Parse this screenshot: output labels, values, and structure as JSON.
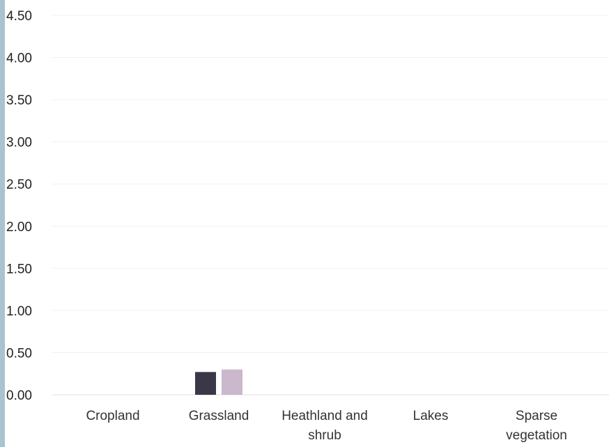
{
  "chart_data": {
    "type": "bar",
    "categories": [
      "Cropland",
      "Grassland",
      "Heathland and shrub",
      "Lakes",
      "Sparse vegetation"
    ],
    "category_labels": [
      [
        "Cropland"
      ],
      [
        "Grassland"
      ],
      [
        "Heathland and",
        "shrub"
      ],
      [
        "Lakes"
      ],
      [
        "Sparse",
        "vegetation"
      ]
    ],
    "series": [
      {
        "color": "#3a3848",
        "values": [
          0,
          0.27,
          0,
          0,
          0
        ]
      },
      {
        "color": "#cbb8cd",
        "values": [
          0,
          0.3,
          0,
          0,
          0
        ]
      }
    ],
    "y_ticks": [
      "0.00",
      "0.50",
      "1.00",
      "1.50",
      "2.00",
      "2.50",
      "3.00",
      "3.50",
      "4.00",
      "4.50"
    ],
    "ylim": [
      0,
      4.5
    ],
    "grid": true,
    "title": "",
    "xlabel": "",
    "ylabel": ""
  }
}
